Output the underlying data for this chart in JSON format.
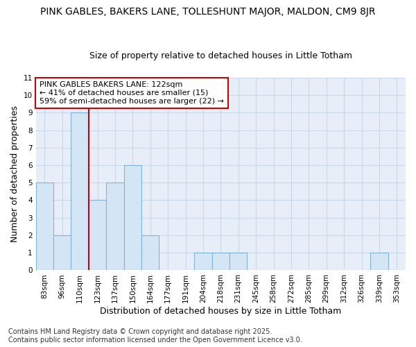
{
  "title": "PINK GABLES, BAKERS LANE, TOLLESHUNT MAJOR, MALDON, CM9 8JR",
  "subtitle": "Size of property relative to detached houses in Little Totham",
  "xlabel": "Distribution of detached houses by size in Little Totham",
  "ylabel": "Number of detached properties",
  "categories": [
    "83sqm",
    "96sqm",
    "110sqm",
    "123sqm",
    "137sqm",
    "150sqm",
    "164sqm",
    "177sqm",
    "191sqm",
    "204sqm",
    "218sqm",
    "231sqm",
    "245sqm",
    "258sqm",
    "272sqm",
    "285sqm",
    "299sqm",
    "312sqm",
    "326sqm",
    "339sqm",
    "353sqm"
  ],
  "values": [
    5,
    2,
    9,
    4,
    5,
    6,
    2,
    0,
    0,
    1,
    1,
    1,
    0,
    0,
    0,
    0,
    0,
    0,
    0,
    1,
    0
  ],
  "bar_color": "#d4e6f5",
  "bar_edge_color": "#7fb3d9",
  "marker_line_color": "#cc0000",
  "marker_after_index": 2,
  "annotation_text": "PINK GABLES BAKERS LANE: 122sqm\n← 41% of detached houses are smaller (15)\n59% of semi-detached houses are larger (22) →",
  "annotation_box_facecolor": "#ffffff",
  "annotation_box_edgecolor": "#cc0000",
  "ylim": [
    0,
    11
  ],
  "yticks": [
    0,
    1,
    2,
    3,
    4,
    5,
    6,
    7,
    8,
    9,
    10,
    11
  ],
  "fig_background": "#ffffff",
  "plot_background": "#e8eef8",
  "grid_color": "#c8d8e8",
  "footer": "Contains HM Land Registry data © Crown copyright and database right 2025.\nContains public sector information licensed under the Open Government Licence v3.0.",
  "title_fontsize": 10,
  "subtitle_fontsize": 9,
  "xlabel_fontsize": 9,
  "ylabel_fontsize": 9,
  "tick_fontsize": 7.5,
  "annotation_fontsize": 8,
  "footer_fontsize": 7
}
